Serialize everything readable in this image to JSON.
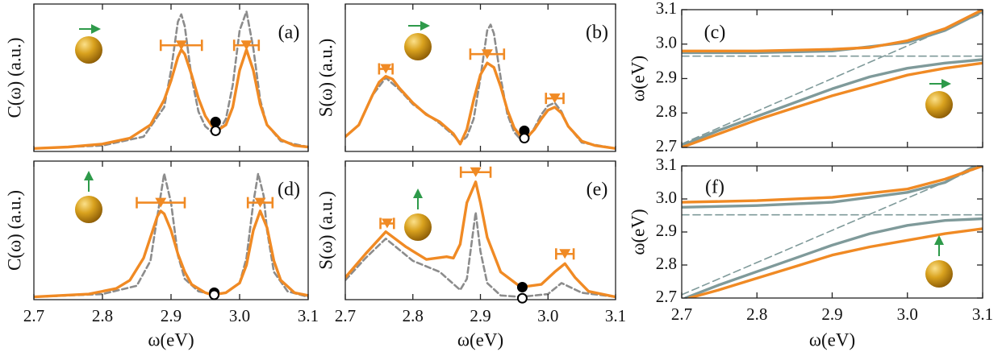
{
  "chart_data": [
    {
      "type": "line",
      "label": "(a)",
      "ylabel": "C(ω) (a.u.)",
      "xlim": [
        2.7,
        3.1
      ],
      "ylim": [
        0,
        1
      ],
      "xticks": [
        2.7,
        2.8,
        2.9,
        {
          "value": 3,
          "label": "3.0"
        },
        3.1
      ],
      "xtick_labels": false,
      "series": [
        {
          "color": "#8c8c8c",
          "dash": true,
          "x": [
            2.7,
            2.8,
            2.86,
            2.89,
            2.9,
            2.91,
            2.915,
            2.92,
            2.93,
            2.94,
            2.95,
            2.96,
            2.97,
            2.98,
            2.99,
            3.0,
            3.01,
            3.02,
            3.03,
            3.04,
            3.06,
            3.1
          ],
          "values": [
            0.02,
            0.04,
            0.1,
            0.3,
            0.55,
            0.88,
            0.93,
            0.85,
            0.5,
            0.27,
            0.17,
            0.13,
            0.14,
            0.22,
            0.45,
            0.82,
            0.95,
            0.7,
            0.35,
            0.18,
            0.07,
            0.03
          ]
        },
        {
          "color": "#f08a24",
          "dash": false,
          "x": [
            2.7,
            2.75,
            2.8,
            2.84,
            2.87,
            2.89,
            2.9,
            2.91,
            2.915,
            2.92,
            2.93,
            2.94,
            2.95,
            2.96,
            2.97,
            2.98,
            2.99,
            3.0,
            3.01,
            3.02,
            3.03,
            3.04,
            3.06,
            3.08,
            3.1
          ],
          "values": [
            0.02,
            0.03,
            0.05,
            0.09,
            0.18,
            0.35,
            0.48,
            0.64,
            0.69,
            0.66,
            0.52,
            0.36,
            0.24,
            0.17,
            0.15,
            0.18,
            0.3,
            0.55,
            0.69,
            0.55,
            0.32,
            0.18,
            0.08,
            0.04,
            0.03
          ]
        }
      ],
      "markers": {
        "color": "#f08a24",
        "x": [
          2.915,
          3.01
        ],
        "y": [
          0.72,
          0.72
        ],
        "xerr": [
          0.03,
          0.018
        ]
      },
      "points": {
        "x": [
          2.965,
          2.965
        ],
        "y": [
          0.2,
          0.14
        ],
        "filled": [
          true,
          false
        ]
      }
    },
    {
      "type": "line",
      "label": "(b)",
      "ylabel": "S(ω) (a.u.)",
      "xlim": [
        2.7,
        3.1
      ],
      "ylim": [
        0,
        1
      ],
      "xticks": [
        2.7,
        2.8,
        2.9,
        {
          "value": 3,
          "label": "3.0"
        },
        3.1
      ],
      "xtick_labels": false,
      "series": [
        {
          "color": "#8c8c8c",
          "dash": true,
          "x": [
            2.7,
            2.72,
            2.74,
            2.76,
            2.78,
            2.8,
            2.84,
            2.86,
            2.87,
            2.88,
            2.89,
            2.9,
            2.91,
            2.915,
            2.92,
            2.93,
            2.94,
            2.95,
            2.96,
            2.97,
            2.98,
            2.99,
            3.0,
            3.01,
            3.02,
            3.03,
            3.05,
            3.1
          ],
          "values": [
            0.1,
            0.18,
            0.38,
            0.5,
            0.42,
            0.32,
            0.19,
            0.11,
            0.06,
            0.1,
            0.22,
            0.5,
            0.82,
            0.86,
            0.8,
            0.5,
            0.25,
            0.13,
            0.08,
            0.09,
            0.16,
            0.25,
            0.31,
            0.33,
            0.27,
            0.17,
            0.06,
            0.02
          ]
        },
        {
          "color": "#f08a24",
          "dash": false,
          "x": [
            2.7,
            2.72,
            2.74,
            2.75,
            2.76,
            2.77,
            2.78,
            2.8,
            2.82,
            2.84,
            2.86,
            2.87,
            2.88,
            2.89,
            2.9,
            2.91,
            2.92,
            2.93,
            2.94,
            2.95,
            2.96,
            2.97,
            2.98,
            2.99,
            3.0,
            3.01,
            3.02,
            3.03,
            3.05,
            3.07,
            3.1
          ],
          "values": [
            0.1,
            0.18,
            0.38,
            0.47,
            0.51,
            0.49,
            0.43,
            0.33,
            0.25,
            0.2,
            0.12,
            0.05,
            0.15,
            0.35,
            0.52,
            0.6,
            0.57,
            0.44,
            0.28,
            0.16,
            0.1,
            0.1,
            0.15,
            0.22,
            0.28,
            0.3,
            0.26,
            0.17,
            0.07,
            0.04,
            0.02
          ]
        }
      ],
      "markers": {
        "color": "#f08a24",
        "x": [
          2.76,
          2.91,
          3.01
        ],
        "y": [
          0.56,
          0.66,
          0.36
        ],
        "xerr": [
          0.01,
          0.025,
          0.013
        ]
      },
      "points": {
        "x": [
          2.965,
          2.965
        ],
        "y": [
          0.14,
          0.09
        ],
        "filled": [
          true,
          false
        ]
      }
    },
    {
      "type": "line",
      "label": "(c)",
      "ylabel": "ω(eV)",
      "xlim": [
        2.7,
        3.1
      ],
      "ylim": [
        2.7,
        3.1
      ],
      "xticks": [
        2.7,
        2.8,
        2.9,
        {
          "value": 3,
          "label": "3.0"
        },
        3.1
      ],
      "xtick_labels": false,
      "yticks": [
        2.7,
        2.8,
        2.9,
        {
          "value": 3,
          "label": "3.0"
        },
        3.1
      ],
      "series": [
        {
          "color": "#7f9a9a",
          "dash": true,
          "x": [
            2.7,
            3.1
          ],
          "values": [
            2.965,
            2.965
          ]
        },
        {
          "color": "#7f9a9a",
          "dash": true,
          "x": [
            2.7,
            3.1
          ],
          "values": [
            2.71,
            3.09
          ]
        },
        {
          "color": "#7f9a9a",
          "dash": false,
          "x": [
            2.7,
            2.8,
            2.9,
            3.0,
            3.05,
            3.1
          ],
          "values": [
            2.975,
            2.975,
            2.98,
            3.005,
            3.04,
            3.095
          ]
        },
        {
          "color": "#7f9a9a",
          "dash": false,
          "x": [
            2.7,
            2.75,
            2.8,
            2.85,
            2.9,
            2.95,
            3.0,
            3.05,
            3.1
          ],
          "values": [
            2.705,
            2.75,
            2.79,
            2.83,
            2.87,
            2.905,
            2.93,
            2.945,
            2.955
          ]
        },
        {
          "color": "#f08a24",
          "dash": false,
          "x": [
            2.7,
            2.8,
            2.9,
            2.95,
            3.0,
            3.05,
            3.1
          ],
          "values": [
            2.98,
            2.98,
            2.985,
            2.99,
            3.01,
            3.045,
            3.1
          ]
        },
        {
          "color": "#f08a24",
          "dash": false,
          "x": [
            2.7,
            2.75,
            2.8,
            2.85,
            2.9,
            2.95,
            3.0,
            3.05,
            3.1
          ],
          "values": [
            2.7,
            2.74,
            2.78,
            2.815,
            2.85,
            2.88,
            2.91,
            2.93,
            2.945
          ]
        }
      ]
    },
    {
      "type": "line",
      "label": "(d)",
      "ylabel": "C(ω) (a.u.)",
      "xlabel": "ω(eV)",
      "xlim": [
        2.7,
        3.1
      ],
      "ylim": [
        0,
        1
      ],
      "xticks": [
        2.7,
        2.8,
        2.9,
        {
          "value": 3,
          "label": "3.0"
        },
        3.1
      ],
      "xtick_labels": true,
      "series": [
        {
          "color": "#8c8c8c",
          "dash": true,
          "x": [
            2.7,
            2.8,
            2.85,
            2.87,
            2.88,
            2.89,
            2.9,
            2.91,
            2.92,
            2.94,
            2.96,
            2.98,
            3.0,
            3.01,
            3.02,
            3.027,
            3.035,
            3.04,
            3.05,
            3.07,
            3.1
          ],
          "values": [
            0.02,
            0.04,
            0.1,
            0.28,
            0.6,
            0.91,
            0.7,
            0.32,
            0.15,
            0.06,
            0.04,
            0.05,
            0.12,
            0.3,
            0.7,
            0.91,
            0.75,
            0.5,
            0.2,
            0.06,
            0.02
          ]
        },
        {
          "color": "#f08a24",
          "dash": false,
          "x": [
            2.7,
            2.78,
            2.82,
            2.84,
            2.86,
            2.87,
            2.88,
            2.885,
            2.89,
            2.9,
            2.91,
            2.92,
            2.93,
            2.95,
            2.96,
            2.98,
            3.0,
            3.01,
            3.02,
            3.03,
            3.04,
            3.05,
            3.06,
            3.08,
            3.1
          ],
          "values": [
            0.02,
            0.04,
            0.08,
            0.14,
            0.3,
            0.45,
            0.6,
            0.64,
            0.62,
            0.5,
            0.33,
            0.2,
            0.11,
            0.05,
            0.035,
            0.05,
            0.12,
            0.25,
            0.5,
            0.64,
            0.52,
            0.28,
            0.14,
            0.05,
            0.03
          ]
        }
      ],
      "markers": {
        "color": "#f08a24",
        "x": [
          2.885,
          3.03
        ],
        "y": [
          0.7,
          0.7
        ],
        "xerr": [
          0.035,
          0.018
        ]
      },
      "points": {
        "x": [
          2.963,
          2.963
        ],
        "y": [
          0.05,
          0.035
        ],
        "filled": [
          true,
          false
        ]
      }
    },
    {
      "type": "line",
      "label": "(e)",
      "ylabel": "S(ω) (a.u.)",
      "xlabel": "ω(eV)",
      "xlim": [
        2.7,
        3.1
      ],
      "ylim": [
        0,
        1
      ],
      "xticks": [
        2.7,
        2.8,
        2.9,
        {
          "value": 3,
          "label": "3.0"
        },
        3.1
      ],
      "xtick_labels": true,
      "series": [
        {
          "color": "#8c8c8c",
          "dash": true,
          "x": [
            2.7,
            2.73,
            2.76,
            2.8,
            2.84,
            2.87,
            2.88,
            2.893,
            2.9,
            2.91,
            2.93,
            2.96,
            3.0,
            3.02,
            3.05,
            3.1
          ],
          "values": [
            0.14,
            0.3,
            0.44,
            0.28,
            0.2,
            0.07,
            0.15,
            0.63,
            0.35,
            0.12,
            0.03,
            0.02,
            0.04,
            0.12,
            0.05,
            0.02
          ]
        },
        {
          "color": "#f08a24",
          "dash": false,
          "x": [
            2.7,
            2.73,
            2.76,
            2.79,
            2.82,
            2.85,
            2.86,
            2.87,
            2.88,
            2.893,
            2.9,
            2.91,
            2.93,
            2.96,
            2.99,
            3.01,
            3.025,
            3.04,
            3.06,
            3.1
          ],
          "values": [
            0.16,
            0.33,
            0.49,
            0.38,
            0.29,
            0.31,
            0.3,
            0.4,
            0.7,
            0.85,
            0.7,
            0.45,
            0.2,
            0.09,
            0.11,
            0.2,
            0.26,
            0.16,
            0.06,
            0.02
          ]
        }
      ],
      "markers": {
        "color": "#f08a24",
        "x": [
          2.762,
          2.893,
          3.025
        ],
        "y": [
          0.55,
          0.92,
          0.33
        ],
        "xerr": [
          0.01,
          0.022,
          0.013
        ]
      },
      "points": {
        "x": [
          2.962,
          2.962
        ],
        "y": [
          0.09,
          0.01
        ],
        "filled": [
          true,
          false
        ]
      }
    },
    {
      "type": "line",
      "label": "(f)",
      "ylabel": "ω(eV)",
      "xlabel": "ω(eV)",
      "xlim": [
        2.7,
        3.1
      ],
      "ylim": [
        2.7,
        3.1
      ],
      "xticks": [
        2.7,
        2.8,
        2.9,
        {
          "value": 3,
          "label": "3.0"
        },
        3.1
      ],
      "xtick_labels": true,
      "yticks": [
        2.7,
        2.8,
        2.9,
        {
          "value": 3,
          "label": "3.0"
        },
        3.1
      ],
      "series": [
        {
          "color": "#7f9a9a",
          "dash": true,
          "x": [
            2.7,
            3.1
          ],
          "values": [
            2.952,
            2.952
          ]
        },
        {
          "color": "#7f9a9a",
          "dash": true,
          "x": [
            2.7,
            3.1
          ],
          "values": [
            2.71,
            3.1
          ]
        },
        {
          "color": "#7f9a9a",
          "dash": false,
          "x": [
            2.7,
            2.8,
            2.9,
            3.0,
            3.05,
            3.09
          ],
          "values": [
            2.975,
            2.98,
            2.99,
            3.02,
            3.05,
            3.1
          ]
        },
        {
          "color": "#7f9a9a",
          "dash": false,
          "x": [
            2.705,
            2.75,
            2.8,
            2.85,
            2.9,
            2.95,
            3.0,
            3.05,
            3.1
          ],
          "values": [
            2.7,
            2.74,
            2.78,
            2.82,
            2.86,
            2.895,
            2.92,
            2.935,
            2.94
          ]
        },
        {
          "color": "#f08a24",
          "dash": false,
          "x": [
            2.7,
            2.8,
            2.9,
            3.0,
            3.05,
            3.1
          ],
          "values": [
            2.99,
            2.995,
            3.005,
            3.03,
            3.06,
            3.1
          ]
        },
        {
          "color": "#f08a24",
          "dash": false,
          "x": [
            2.71,
            2.75,
            2.8,
            2.85,
            2.9,
            2.95,
            3.0,
            3.05,
            3.1
          ],
          "values": [
            2.7,
            2.725,
            2.76,
            2.795,
            2.83,
            2.855,
            2.875,
            2.895,
            2.91
          ]
        }
      ]
    }
  ]
}
